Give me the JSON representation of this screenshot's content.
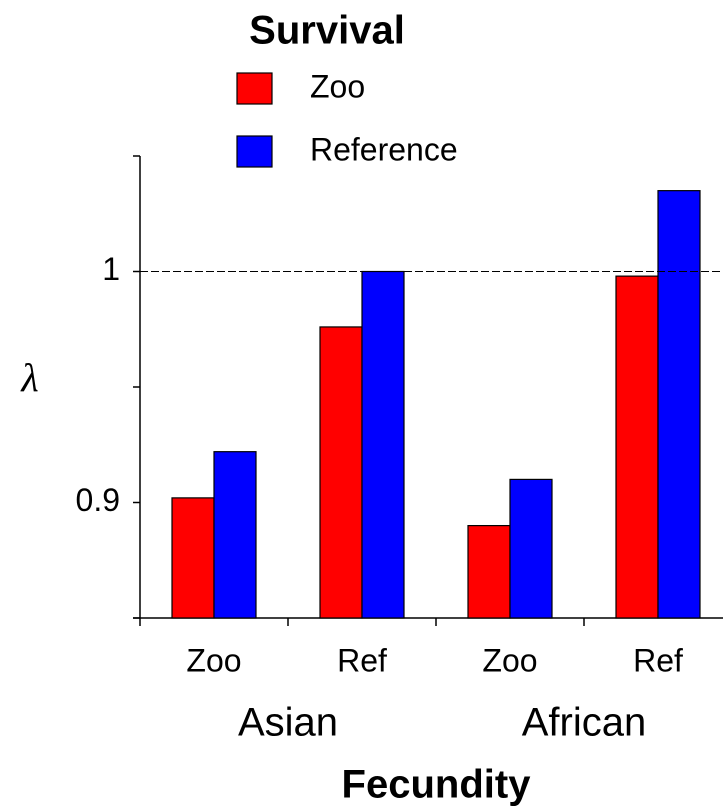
{
  "chart_data": {
    "type": "bar",
    "legend_title": "Survival",
    "categories": [
      "Zoo",
      "Ref",
      "Zoo",
      "Ref"
    ],
    "groups": [
      "Asian",
      "African"
    ],
    "xlabel": "Fecundity",
    "ylabel": "λ",
    "series": [
      {
        "name": "Zoo",
        "color": "#ff0000",
        "values": [
          0.902,
          0.976,
          0.89,
          0.998
        ]
      },
      {
        "name": "Reference",
        "color": "#0000ff",
        "values": [
          0.922,
          1.0,
          0.91,
          1.035
        ]
      }
    ],
    "ylim": [
      0.85,
      1.05
    ],
    "yticks": [
      0.9,
      1
    ],
    "minor_yticks": [
      0.85,
      0.95,
      1.05
    ],
    "reference_line": 1,
    "legend": "top"
  }
}
